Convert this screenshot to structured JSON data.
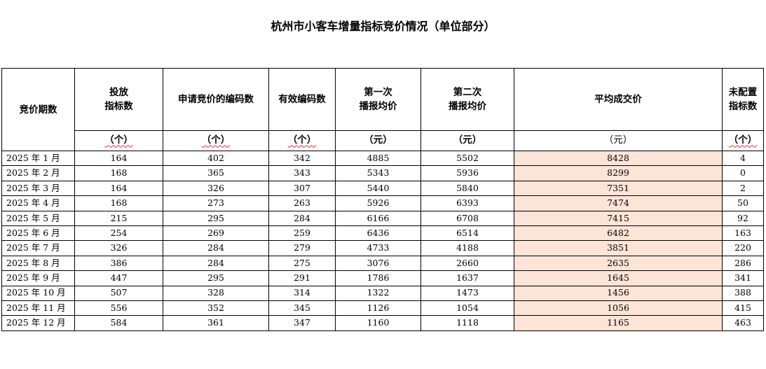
{
  "title": "杭州市小客车增量指标竞价情况（单位部分）",
  "headers": [
    "竞价期数",
    "投放\n指标数",
    "申请竞价的编码数",
    "有效编码数",
    "第一次\n播报均价",
    "第二次\n播报均价",
    "平均成交价",
    "未配置\n指标数"
  ],
  "units": [
    "",
    "（个）",
    "（个）",
    "（个）",
    "（元）",
    "（元）",
    "（元）",
    "（个）"
  ],
  "highlight_color": "#fce4d6",
  "rows": [
    [
      "2025 年 1 月",
      "164",
      "402",
      "342",
      "4885",
      "5502",
      "8428",
      "4"
    ],
    [
      "2025 年 2 月",
      "168",
      "365",
      "343",
      "5343",
      "5936",
      "8299",
      "0"
    ],
    [
      "2025 年 3 月",
      "164",
      "326",
      "307",
      "5440",
      "5840",
      "7351",
      "2"
    ],
    [
      "2025 年 4 月",
      "168",
      "273",
      "263",
      "5926",
      "6393",
      "7474",
      "50"
    ],
    [
      "2025 年 5 月",
      "215",
      "295",
      "284",
      "6166",
      "6708",
      "7415",
      "92"
    ],
    [
      "2025 年 6 月",
      "254",
      "269",
      "259",
      "6436",
      "6514",
      "6482",
      "163"
    ],
    [
      "2025 年 7 月",
      "326",
      "284",
      "279",
      "4733",
      "4188",
      "3851",
      "220"
    ],
    [
      "2025 年 8 月",
      "386",
      "284",
      "275",
      "3076",
      "2660",
      "2635",
      "286"
    ],
    [
      "2025 年 9 月",
      "447",
      "295",
      "291",
      "1786",
      "1637",
      "1645",
      "341"
    ],
    [
      "2025 年 10 月",
      "507",
      "328",
      "314",
      "1322",
      "1473",
      "1456",
      "388"
    ],
    [
      "2025 年 11 月",
      "556",
      "352",
      "345",
      "1126",
      "1054",
      "1056",
      "415"
    ],
    [
      "2025 年 12 月",
      "584",
      "361",
      "347",
      "1160",
      "1118",
      "1165",
      "463"
    ]
  ]
}
